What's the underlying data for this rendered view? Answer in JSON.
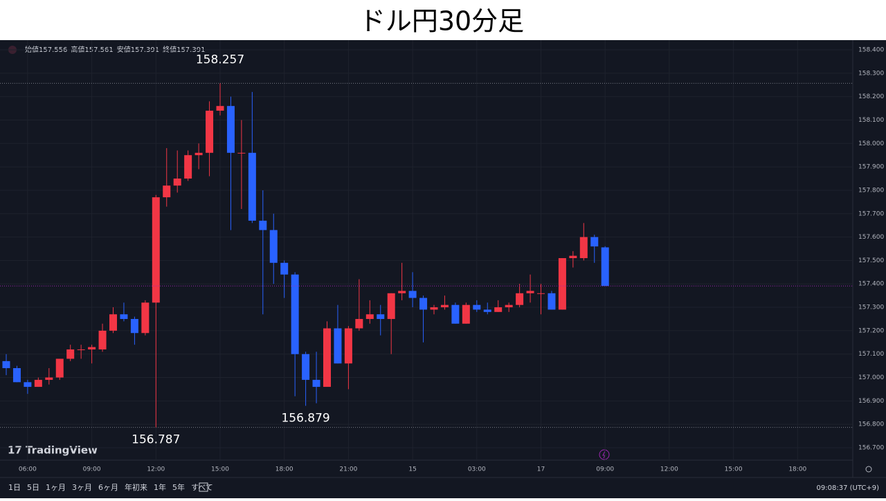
{
  "title": "ドル円30分足",
  "ohlc_header": [
    "始値157.556",
    "高値157.561",
    "安値157.391",
    "終値157.391"
  ],
  "logo": "TradingView",
  "toolbar": {
    "ranges": [
      "1日",
      "5日",
      "1ヶ月",
      "3ヶ月",
      "6ヶ月",
      "年初来",
      "1年",
      "5年",
      "すべて"
    ],
    "clock": "09:08:37 (UTC+9)"
  },
  "chart_data": {
    "type": "candlestick",
    "up_color": "#f23645",
    "down_color": "#2962ff",
    "grid": true,
    "categories": [
      null,
      null,
      "06:00",
      null,
      null,
      null,
      null,
      null,
      "09:00",
      null,
      null,
      null,
      null,
      null,
      "12:00",
      null,
      null,
      null,
      null,
      null,
      "15:00",
      null,
      null,
      null,
      null,
      null,
      "18:00",
      null,
      null,
      null,
      null,
      null,
      "21:00",
      null,
      null,
      null,
      null,
      null,
      "15",
      null,
      null,
      null,
      null,
      null,
      "03:00",
      null,
      null,
      null,
      null,
      null,
      "17",
      null,
      null,
      null,
      null,
      null,
      "09:00",
      null,
      null,
      null,
      null,
      null,
      "12:00",
      null,
      null,
      null,
      null,
      null,
      "15:00",
      null,
      null,
      null,
      null,
      null,
      "18:00",
      null
    ],
    "open": [
      157.07,
      157.04,
      156.98,
      156.96,
      156.99,
      157.0,
      157.08,
      157.12,
      157.12,
      157.12,
      157.2,
      157.27,
      157.25,
      157.19,
      157.32,
      157.77,
      157.82,
      157.85,
      157.95,
      157.96,
      158.14,
      158.16,
      157.96,
      157.96,
      157.67,
      157.63,
      157.49,
      157.44,
      157.1,
      156.99,
      156.96,
      157.21,
      157.06,
      157.21,
      157.25,
      157.27,
      157.25,
      157.36,
      157.37,
      157.34,
      157.29,
      157.3,
      157.31,
      157.23,
      157.31,
      157.29,
      157.28,
      157.3,
      157.31,
      157.36,
      157.36,
      157.36,
      157.29,
      157.51,
      157.51,
      157.6,
      157.556,
      null,
      null,
      null,
      null,
      null,
      null,
      null,
      null,
      null,
      null,
      null,
      null,
      null,
      null,
      null,
      null,
      null,
      null,
      null
    ],
    "high": [
      157.1,
      157.05,
      156.99,
      157.0,
      157.04,
      157.08,
      157.14,
      157.14,
      157.14,
      157.23,
      157.3,
      157.32,
      157.26,
      157.33,
      157.78,
      157.98,
      157.97,
      157.97,
      158.0,
      158.18,
      158.257,
      158.2,
      158.1,
      158.22,
      157.8,
      157.7,
      157.5,
      157.45,
      157.11,
      157.11,
      157.24,
      157.31,
      157.22,
      157.42,
      157.33,
      157.31,
      157.36,
      157.49,
      157.45,
      157.35,
      157.31,
      157.35,
      157.32,
      157.32,
      157.33,
      157.32,
      157.33,
      157.32,
      157.4,
      157.44,
      157.4,
      157.37,
      157.51,
      157.54,
      157.66,
      157.61,
      157.561,
      null,
      null,
      null,
      null,
      null,
      null,
      null,
      null,
      null,
      null,
      null,
      null,
      null,
      null,
      null,
      null,
      null,
      null,
      null
    ],
    "low": [
      157.01,
      156.98,
      156.93,
      156.96,
      156.97,
      156.99,
      157.07,
      157.08,
      157.06,
      157.11,
      157.19,
      157.24,
      157.14,
      157.18,
      156.787,
      157.73,
      157.79,
      157.84,
      157.89,
      157.86,
      158.12,
      157.63,
      157.72,
      157.66,
      157.27,
      157.4,
      157.34,
      156.92,
      156.879,
      156.89,
      156.96,
      157.06,
      156.95,
      157.2,
      157.23,
      157.18,
      157.1,
      157.33,
      157.3,
      157.15,
      157.27,
      157.29,
      157.23,
      157.23,
      157.28,
      157.27,
      157.28,
      157.28,
      157.3,
      157.32,
      157.27,
      157.29,
      157.29,
      157.47,
      157.5,
      157.49,
      157.391,
      null,
      null,
      null,
      null,
      null,
      null,
      null,
      null,
      null,
      null,
      null,
      null,
      null,
      null,
      null,
      null,
      null,
      null,
      null
    ],
    "close": [
      157.04,
      156.98,
      156.96,
      156.99,
      157.0,
      157.08,
      157.12,
      157.12,
      157.13,
      157.2,
      157.27,
      157.25,
      157.19,
      157.32,
      157.77,
      157.82,
      157.85,
      157.95,
      157.96,
      158.14,
      158.16,
      157.96,
      157.96,
      157.67,
      157.63,
      157.49,
      157.44,
      157.1,
      156.99,
      156.96,
      157.21,
      157.06,
      157.21,
      157.25,
      157.27,
      157.25,
      157.36,
      157.37,
      157.34,
      157.29,
      157.3,
      157.31,
      157.23,
      157.31,
      157.29,
      157.28,
      157.3,
      157.31,
      157.36,
      157.37,
      157.36,
      157.29,
      157.51,
      157.52,
      157.6,
      157.56,
      157.391,
      null,
      null,
      null,
      null,
      null,
      null,
      null,
      null,
      null,
      null,
      null,
      null,
      null,
      null,
      null,
      null,
      null,
      null,
      null
    ],
    "annotations": [
      158.257,
      156.787,
      156.879
    ],
    "ylim": [
      156.7,
      158.4
    ],
    "yticks": [
      {
        "value": 156.7,
        "label": "156.700"
      },
      {
        "value": 156.8,
        "label": "156.800"
      },
      {
        "value": 156.9,
        "label": "156.900"
      },
      {
        "value": 157.0,
        "label": "157.000"
      },
      {
        "value": 157.1,
        "label": "157.100"
      },
      {
        "value": 157.2,
        "label": "157.200"
      },
      {
        "value": 157.3,
        "label": "157.300"
      },
      {
        "value": 157.4,
        "label": "157.400"
      },
      {
        "value": 157.5,
        "label": "157.500"
      },
      {
        "value": 157.6,
        "label": "157.600"
      },
      {
        "value": 157.7,
        "label": "157.700"
      },
      {
        "value": 157.8,
        "label": "157.800"
      },
      {
        "value": 157.9,
        "label": "157.900"
      },
      {
        "value": 158.0,
        "label": "158.000"
      },
      {
        "value": 158.1,
        "label": "158.100"
      },
      {
        "value": 158.2,
        "label": "158.200"
      },
      {
        "value": 158.3,
        "label": "158.300"
      },
      {
        "value": 158.4,
        "label": "158.400"
      }
    ]
  }
}
